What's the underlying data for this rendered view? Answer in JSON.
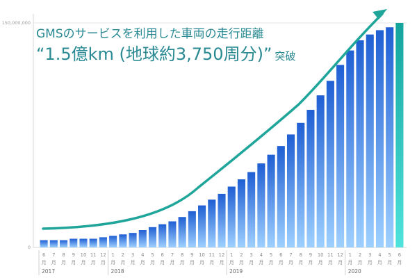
{
  "headline": {
    "line1": "GMSのサービスを利用した車両の走行距離",
    "line2": "“1.5億km (地球約3,750周分)”",
    "suffix": "突破"
  },
  "colors": {
    "accent": "#1fa59a",
    "bar_top": "#1f5fd3",
    "bar_bottom": "#9ed0ff",
    "last_bar_top": "#14a49d",
    "last_bar_bottom": "#4fe3dc",
    "axis": "#d7d7d7",
    "arrow": "#1fa59a"
  },
  "chart_data": {
    "type": "bar",
    "x_tick_labels": [
      "6",
      "7",
      "8",
      "9",
      "10",
      "11",
      "12",
      "1",
      "2",
      "3",
      "4",
      "5",
      "6",
      "7",
      "8",
      "9",
      "10",
      "11",
      "12",
      "1",
      "2",
      "3",
      "4",
      "5",
      "6",
      "7",
      "8",
      "9",
      "10",
      "11",
      "12",
      "1",
      "2",
      "3",
      "4",
      "5",
      "6"
    ],
    "x_sub_label": "月",
    "years": [
      {
        "label": "2017",
        "start_index": 0
      },
      {
        "label": "2018",
        "start_index": 7
      },
      {
        "label": "2019",
        "start_index": 19
      },
      {
        "label": "2020",
        "start_index": 31
      }
    ],
    "values": [
      5,
      5,
      5,
      6,
      6,
      6,
      7,
      8,
      9,
      10,
      12,
      14,
      16,
      18,
      21,
      25,
      29,
      33,
      37,
      42,
      47,
      52,
      58,
      64,
      70,
      78,
      86,
      95,
      105,
      115,
      126,
      136,
      143,
      147,
      150,
      152,
      155
    ],
    "y_unit": "km",
    "y_ticks": [
      0,
      150000000
    ],
    "y_tick_labels": [
      "0",
      "150,000,000"
    ],
    "ylim": [
      0,
      155000000
    ],
    "trend": "upward"
  }
}
